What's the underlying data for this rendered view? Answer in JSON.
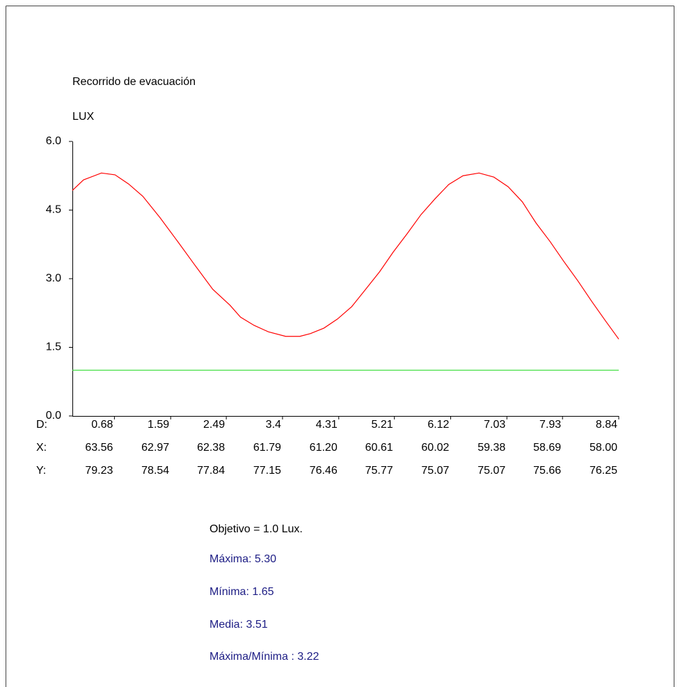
{
  "chart_data": {
    "type": "line",
    "title": "Recorrido de evacuación",
    "y_label": "LUX",
    "x": [
      0,
      0.18,
      0.47,
      0.69,
      0.91,
      1.14,
      1.42,
      1.7,
      1.98,
      2.27,
      2.55,
      2.72,
      2.94,
      3.17,
      3.45,
      3.68,
      3.85,
      4.07,
      4.29,
      4.52,
      4.74,
      4.97,
      5.19,
      5.42,
      5.64,
      5.87,
      6.09,
      6.32,
      6.58,
      6.82,
      7.05,
      7.28,
      7.5,
      7.73,
      7.95,
      8.18,
      8.4,
      8.63,
      8.84
    ],
    "series": [
      {
        "color": "#ff0000",
        "values": [
          4.93,
          5.16,
          5.31,
          5.27,
          5.07,
          4.8,
          4.33,
          3.82,
          3.3,
          2.77,
          2.42,
          2.16,
          1.98,
          1.84,
          1.74,
          1.74,
          1.8,
          1.92,
          2.12,
          2.39,
          2.76,
          3.15,
          3.58,
          3.99,
          4.4,
          4.75,
          5.06,
          5.25,
          5.31,
          5.22,
          5.01,
          4.68,
          4.22,
          3.81,
          3.38,
          2.95,
          2.51,
          2.07,
          1.68
        ]
      }
    ],
    "target": 1.0,
    "target_color": "#33dd33",
    "xlim": [
      0,
      8.84
    ],
    "xticks": [
      0.68,
      1.59,
      2.49,
      3.4,
      4.31,
      5.21,
      6.12,
      7.03,
      7.93,
      8.84
    ],
    "ylim": [
      0,
      6
    ],
    "yticks": [
      {
        "value": 0,
        "label": "0.0"
      },
      {
        "value": 1.5,
        "label": "1.5"
      },
      {
        "value": 3,
        "label": "3.0"
      },
      {
        "value": 4.5,
        "label": "4.5"
      },
      {
        "value": 6,
        "label": "6.0"
      }
    ],
    "table": {
      "row_labels": [
        "D:",
        "X:",
        "Y:"
      ],
      "x_row": [
        "63.56",
        "62.97",
        "62.38",
        "61.79",
        "61.20",
        "60.61",
        "60.02",
        "59.38",
        "58.69",
        "58.00"
      ],
      "y_row": [
        "79.23",
        "78.54",
        "77.84",
        "77.15",
        "76.46",
        "75.77",
        "75.07",
        "75.07",
        "75.66",
        "76.25"
      ]
    },
    "stats": {
      "objective": "Objetivo = 1.0 Lux.",
      "lines": [
        "Máxima: 5.30",
        "Mínima: 1.65",
        "Media: 3.51",
        "Máxima/Mínima : 3.22"
      ]
    }
  }
}
